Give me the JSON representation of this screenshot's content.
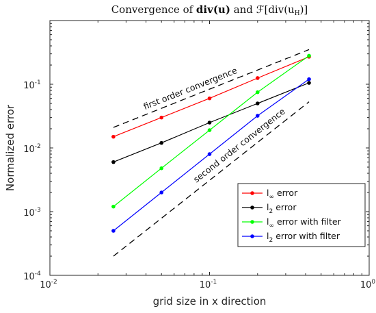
{
  "chart_data": {
    "type": "line",
    "title": "Convergence of div(u) and ℱ[div(u_H)]",
    "title_parts": {
      "prefix": "Convergence of ",
      "term1": "div(u)",
      "joiner": " and ",
      "term2_prefix": "ℱ[div(u",
      "term2_sub": "H",
      "term2_suffix": ")]"
    },
    "xlabel": "grid size in x direction",
    "ylabel": "Normalized error",
    "xscale": "log",
    "yscale": "log",
    "xlim": [
      0.01,
      1
    ],
    "ylim": [
      0.0001,
      1
    ],
    "grid": false,
    "legend_placement": "bottom-right",
    "x_ticks": [
      {
        "base": "10",
        "exp": "-2"
      },
      {
        "base": "10",
        "exp": "-1"
      },
      {
        "base": "10",
        "exp": "0"
      }
    ],
    "y_ticks": [
      {
        "base": "10",
        "exp": "-4"
      },
      {
        "base": "10",
        "exp": "-3"
      },
      {
        "base": "10",
        "exp": "-2"
      },
      {
        "base": "10",
        "exp": "-1"
      }
    ],
    "series": [
      {
        "legend_main": "l",
        "legend_sub": "∞",
        "legend_rest": " error",
        "color": "#ff0000",
        "x": [
          0.025,
          0.05,
          0.1,
          0.2,
          0.42
        ],
        "y": [
          0.015,
          0.03,
          0.06,
          0.125,
          0.27
        ]
      },
      {
        "legend_main": "l",
        "legend_sub": "2",
        "legend_rest": " error",
        "color": "#000000",
        "x": [
          0.025,
          0.05,
          0.1,
          0.2,
          0.42
        ],
        "y": [
          0.006,
          0.012,
          0.025,
          0.05,
          0.105
        ]
      },
      {
        "legend_main": "l",
        "legend_sub": "∞",
        "legend_rest": " error with filter",
        "color": "#00ff00",
        "x": [
          0.025,
          0.05,
          0.1,
          0.2,
          0.42
        ],
        "y": [
          0.0012,
          0.0048,
          0.019,
          0.075,
          0.28
        ]
      },
      {
        "legend_main": "l",
        "legend_sub": "2",
        "legend_rest": " error with filter",
        "color": "#0000ff",
        "x": [
          0.025,
          0.05,
          0.1,
          0.2,
          0.42
        ],
        "y": [
          0.0005,
          0.002,
          0.008,
          0.032,
          0.12
        ]
      }
    ],
    "reference_lines": [
      {
        "label": "first order convergence",
        "x": [
          0.025,
          0.42
        ],
        "y": [
          0.021,
          0.35
        ],
        "color": "#000000"
      },
      {
        "label": "second order convergence",
        "x": [
          0.025,
          0.42
        ],
        "y": [
          0.0002,
          0.053
        ],
        "color": "#000000"
      }
    ]
  }
}
